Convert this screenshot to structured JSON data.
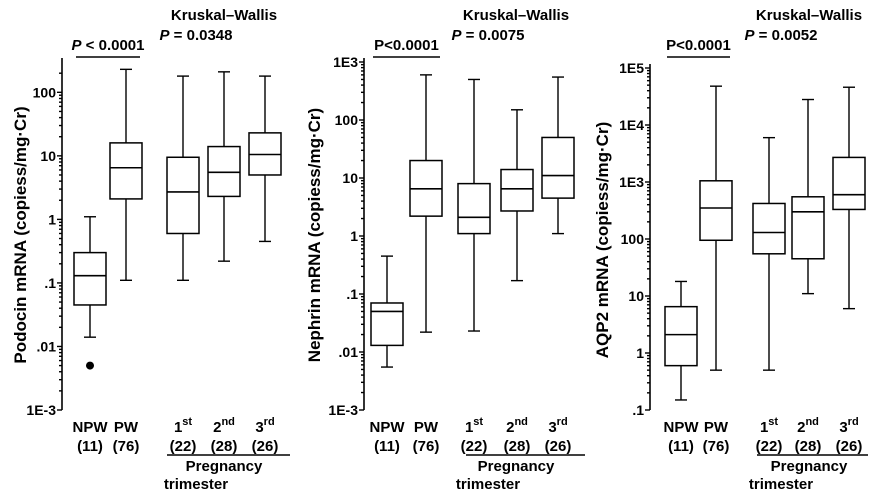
{
  "chart_data": [
    {
      "type": "box",
      "ylabel": "Podocin mRNA (copiess/mg·Cr)",
      "yscale": "log",
      "ylim": [
        0.001,
        300
      ],
      "yticks": [
        {
          "value": 100,
          "label": "100"
        },
        {
          "value": 10,
          "label": "10"
        },
        {
          "value": 1,
          "label": "1"
        },
        {
          "value": 0.1,
          "label": ".1"
        },
        {
          "value": 0.01,
          "label": ".01"
        },
        {
          "value": 0.001,
          "label": "1E-3"
        }
      ],
      "categories": [
        {
          "label": "NPW",
          "n": "(11)"
        },
        {
          "label": "PW",
          "n": "(76)"
        },
        {
          "label": "1",
          "sup": "st",
          "n": "(22)"
        },
        {
          "label": "2",
          "sup": "nd",
          "n": "(28)"
        },
        {
          "label": "3",
          "sup": "rd",
          "n": "(26)"
        }
      ],
      "boxes": [
        {
          "min": 0.014,
          "q1": 0.045,
          "median": 0.13,
          "q3": 0.3,
          "max": 1.1,
          "outliers": [
            0.005
          ]
        },
        {
          "min": 0.11,
          "q1": 2.1,
          "median": 6.5,
          "q3": 16,
          "max": 230,
          "outliers": []
        },
        {
          "min": 0.11,
          "q1": 0.6,
          "median": 2.7,
          "q3": 9.5,
          "max": 180,
          "outliers": []
        },
        {
          "min": 0.22,
          "q1": 2.3,
          "median": 5.5,
          "q3": 14,
          "max": 210,
          "outliers": []
        },
        {
          "min": 0.45,
          "q1": 5,
          "median": 10.5,
          "q3": 23,
          "max": 180,
          "outliers": []
        }
      ],
      "pairwise": {
        "text_italic": "P",
        "text": " < 0.0001",
        "from": 0,
        "to": 1
      },
      "test": {
        "name": "Kruskal–Wallis",
        "text_italic": "P",
        "text": " = 0.0348"
      },
      "group_label": [
        "Pregnancy",
        "trimester"
      ]
    },
    {
      "type": "box",
      "ylabel": "Nephrin mRNA (copiess/mg·Cr)",
      "yscale": "log",
      "ylim": [
        0.001,
        1000
      ],
      "yticks": [
        {
          "value": 1000,
          "label": "1E3"
        },
        {
          "value": 100,
          "label": "100"
        },
        {
          "value": 10,
          "label": "10"
        },
        {
          "value": 1,
          "label": "1"
        },
        {
          "value": 0.1,
          "label": ".1"
        },
        {
          "value": 0.01,
          "label": ".01"
        },
        {
          "value": 0.001,
          "label": "1E-3"
        }
      ],
      "categories": [
        {
          "label": "NPW",
          "n": "(11)"
        },
        {
          "label": "PW",
          "n": "(76)"
        },
        {
          "label": "1",
          "sup": "st",
          "n": "(22)"
        },
        {
          "label": "2",
          "sup": "nd",
          "n": "(28)"
        },
        {
          "label": "3",
          "sup": "rd",
          "n": "(26)"
        }
      ],
      "boxes": [
        {
          "min": 0.0055,
          "q1": 0.013,
          "median": 0.05,
          "q3": 0.07,
          "max": 0.45,
          "outliers": []
        },
        {
          "min": 0.022,
          "q1": 2.2,
          "median": 6.5,
          "q3": 20,
          "max": 600,
          "outliers": []
        },
        {
          "min": 0.023,
          "q1": 1.1,
          "median": 2.1,
          "q3": 8,
          "max": 500,
          "outliers": []
        },
        {
          "min": 0.17,
          "q1": 2.7,
          "median": 6.5,
          "q3": 14,
          "max": 150,
          "outliers": []
        },
        {
          "min": 1.1,
          "q1": 4.5,
          "median": 11,
          "q3": 50,
          "max": 550,
          "outliers": []
        }
      ],
      "pairwise": {
        "text_italic": "",
        "text": "P<0.0001",
        "from": 0,
        "to": 1
      },
      "test": {
        "name": "Kruskal–Wallis",
        "text_italic": "P",
        "text": " = 0.0075"
      },
      "group_label": [
        "Pregnancy",
        "trimester"
      ]
    },
    {
      "type": "box",
      "ylabel": "AQP2 mRNA (copiess/mg·Cr)",
      "yscale": "log",
      "ylim": [
        0.1,
        100000
      ],
      "yticks": [
        {
          "value": 100000,
          "label": "1E5"
        },
        {
          "value": 10000,
          "label": "1E4"
        },
        {
          "value": 1000,
          "label": "1E3"
        },
        {
          "value": 100,
          "label": "100"
        },
        {
          "value": 10,
          "label": "10"
        },
        {
          "value": 1,
          "label": "1"
        },
        {
          "value": 0.1,
          "label": ".1"
        }
      ],
      "categories": [
        {
          "label": "NPW",
          "n": "(11)"
        },
        {
          "label": "PW",
          "n": "(76)"
        },
        {
          "label": "1",
          "sup": "st",
          "n": "(22)"
        },
        {
          "label": "2",
          "sup": "nd",
          "n": "(28)"
        },
        {
          "label": "3",
          "sup": "rd",
          "n": "(26)"
        }
      ],
      "boxes": [
        {
          "min": 0.15,
          "q1": 0.6,
          "median": 2.1,
          "q3": 6.5,
          "max": 18,
          "outliers": []
        },
        {
          "min": 0.5,
          "q1": 95,
          "median": 350,
          "q3": 1050,
          "max": 48000,
          "outliers": []
        },
        {
          "min": 0.5,
          "q1": 55,
          "median": 130,
          "q3": 420,
          "max": 6000,
          "outliers": []
        },
        {
          "min": 11,
          "q1": 45,
          "median": 300,
          "q3": 550,
          "max": 28000,
          "outliers": []
        },
        {
          "min": 6,
          "q1": 330,
          "median": 600,
          "q3": 2700,
          "max": 46000,
          "outliers": []
        }
      ],
      "pairwise": {
        "text_italic": "",
        "text": "P<0.0001",
        "from": 0,
        "to": 1
      },
      "test": {
        "name": "Kruskal–Wallis",
        "text_italic": "P",
        "text": " = 0.0052"
      },
      "group_label": [
        "Pregnancy",
        "trimester"
      ]
    }
  ]
}
